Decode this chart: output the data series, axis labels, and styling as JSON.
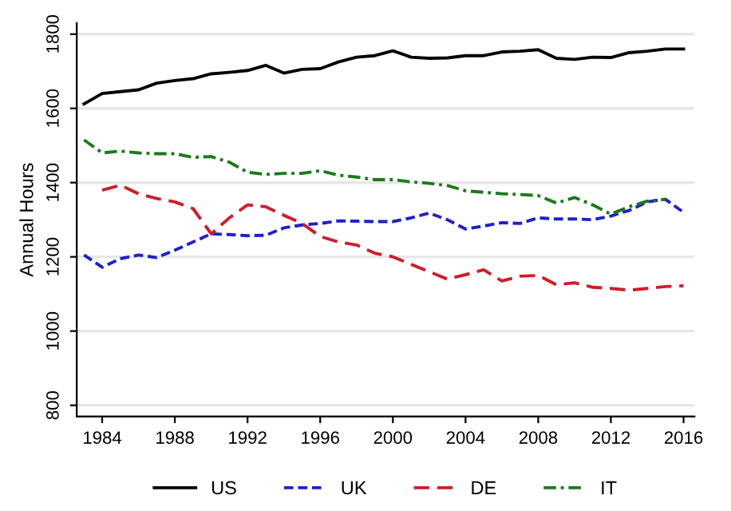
{
  "chart_data": {
    "type": "line",
    "ylabel": "Annual Hours",
    "x": [
      1983,
      1984,
      1985,
      1986,
      1987,
      1988,
      1989,
      1990,
      1991,
      1992,
      1993,
      1994,
      1995,
      1996,
      1997,
      1998,
      1999,
      2000,
      2001,
      2002,
      2003,
      2004,
      2005,
      2006,
      2007,
      2008,
      2009,
      2010,
      2011,
      2012,
      2013,
      2014,
      2015,
      2016
    ],
    "series": [
      {
        "name": "US",
        "color": "#000000",
        "line_style": "solid",
        "values": [
          1612,
          1640,
          1645,
          1650,
          1668,
          1675,
          1680,
          1693,
          1697,
          1702,
          1716,
          1695,
          1705,
          1707,
          1725,
          1738,
          1742,
          1755,
          1738,
          1735,
          1736,
          1742,
          1742,
          1752,
          1754,
          1758,
          1735,
          1732,
          1738,
          1737,
          1750,
          1754,
          1760,
          1760
        ]
      },
      {
        "name": "UK",
        "color": "#1f1fd0",
        "line_style": "dashed",
        "values": [
          1205,
          1172,
          1195,
          1205,
          1198,
          1218,
          1240,
          1262,
          1260,
          1257,
          1258,
          1278,
          1286,
          1290,
          1297,
          1296,
          1295,
          1295,
          1305,
          1318,
          1300,
          1275,
          1283,
          1292,
          1290,
          1305,
          1302,
          1302,
          1300,
          1310,
          1325,
          1348,
          1355,
          1320
        ]
      },
      {
        "name": "DE",
        "color": "#d01c2a",
        "line_style": "longdash",
        "values": [
          null,
          1380,
          1393,
          1370,
          1357,
          1348,
          1330,
          1262,
          1305,
          1340,
          1335,
          1312,
          1290,
          1255,
          1240,
          1232,
          1210,
          1200,
          1180,
          1160,
          1140,
          1152,
          1165,
          1135,
          1148,
          1150,
          1125,
          1130,
          1118,
          1115,
          1110,
          1115,
          1120,
          1122
        ]
      },
      {
        "name": "IT",
        "color": "#1a7a1a",
        "line_style": "dashdot",
        "values": [
          1515,
          1480,
          1485,
          1480,
          1478,
          1478,
          1468,
          1470,
          1455,
          1428,
          1422,
          1425,
          1425,
          1432,
          1420,
          1415,
          1408,
          1408,
          1402,
          1398,
          1392,
          1378,
          1374,
          1370,
          1368,
          1365,
          1345,
          1360,
          1340,
          1315,
          1335,
          1350,
          1355,
          null
        ]
      }
    ],
    "xlim": [
      1982.6,
      2016.6
    ],
    "ylim": [
      770,
      1830
    ],
    "xticks": [
      1984,
      1988,
      1992,
      1996,
      2000,
      2004,
      2008,
      2012,
      2016
    ],
    "yticks": [
      800,
      1000,
      1200,
      1400,
      1600,
      1800
    ],
    "grid": "y",
    "legend": "bottom"
  }
}
